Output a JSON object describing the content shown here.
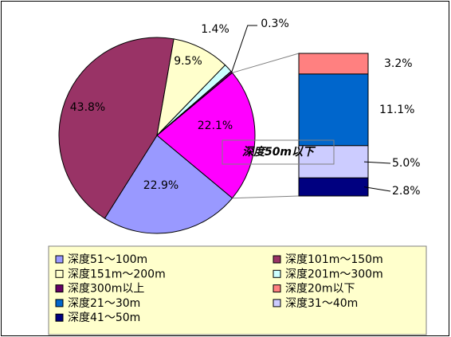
{
  "chart_data": {
    "type": "pie",
    "categories": [
      "深度51～100m",
      "深度101m～150m",
      "深度151m～200m",
      "深度201m～300m",
      "深度300m以上"
    ],
    "values": [
      22.9,
      43.8,
      9.5,
      1.4,
      0.3
    ],
    "value_labels": [
      "22.9%",
      "43.8%",
      "9.5%",
      "1.4%",
      "0.3%"
    ],
    "colors": [
      "#9999ff",
      "#993366",
      "#ffffcc",
      "#ccffff",
      "#660066"
    ],
    "other": {
      "label": "深度50m以下",
      "value": 22.1,
      "value_label": "22.1%",
      "color": "#ff00ff"
    },
    "bar": {
      "categories": [
        "深度20m以下",
        "深度21～30m",
        "深度31～40m",
        "深度41～50m"
      ],
      "values": [
        3.2,
        11.1,
        5.0,
        2.8
      ],
      "value_labels": [
        "3.2%",
        "11.1%",
        "5.0%",
        "2.8%"
      ],
      "colors": [
        "#ff8080",
        "#0066cc",
        "#ccccff",
        "#000080"
      ]
    }
  }
}
